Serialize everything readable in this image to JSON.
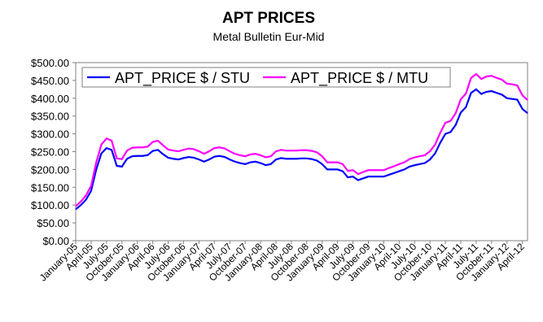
{
  "chart_data": {
    "type": "line",
    "title": "APT PRICES",
    "subtitle": "Metal Bulletin Eur-Mid",
    "categories": [
      "January-05",
      null,
      null,
      "April-05",
      null,
      null,
      "July-05",
      null,
      null,
      "October-05",
      null,
      null,
      "January-06",
      null,
      null,
      "April-06",
      null,
      null,
      "July-06",
      null,
      null,
      "October-06",
      null,
      null,
      "January-07",
      null,
      null,
      "April-07",
      null,
      null,
      "July-07",
      null,
      null,
      "October-07",
      null,
      null,
      "January-08",
      null,
      null,
      "April-08",
      null,
      null,
      "July-08",
      null,
      null,
      "October-08",
      null,
      null,
      "January-09",
      null,
      null,
      "April-09",
      null,
      null,
      "July-09",
      null,
      null,
      "October-09",
      null,
      null,
      "January-10",
      null,
      null,
      "April-10",
      null,
      null,
      "July-10",
      null,
      null,
      "October-10",
      null,
      null,
      "January-11",
      null,
      null,
      "April-11",
      null,
      null,
      "July-11",
      null,
      null,
      "October-11",
      null,
      null,
      "January-12",
      null,
      null,
      "April-12",
      null
    ],
    "series": [
      {
        "name": "APT_PRICE $ / STU",
        "color": "#0000ff",
        "values": [
          88,
          100,
          115,
          140,
          200,
          245,
          260,
          255,
          210,
          208,
          230,
          237,
          238,
          238,
          240,
          252,
          255,
          243,
          233,
          230,
          228,
          232,
          235,
          233,
          228,
          222,
          228,
          236,
          238,
          235,
          228,
          222,
          218,
          215,
          220,
          222,
          218,
          212,
          215,
          228,
          232,
          230,
          230,
          230,
          231,
          231,
          229,
          225,
          215,
          200,
          200,
          200,
          195,
          178,
          180,
          170,
          175,
          180,
          180,
          180,
          180,
          185,
          190,
          195,
          200,
          208,
          212,
          215,
          218,
          228,
          245,
          275,
          300,
          305,
          325,
          360,
          375,
          415,
          425,
          412,
          418,
          420,
          415,
          410,
          400,
          398,
          396,
          370,
          358
        ]
      },
      {
        "name": "APT_PRICE $ / MTU",
        "color": "#ff00ff",
        "values": [
          97,
          110,
          127,
          154,
          220,
          270,
          287,
          281,
          231,
          229,
          253,
          261,
          262,
          262,
          264,
          277,
          281,
          268,
          256,
          253,
          251,
          255,
          259,
          257,
          251,
          244,
          251,
          260,
          262,
          259,
          251,
          244,
          240,
          237,
          242,
          244,
          240,
          234,
          237,
          251,
          255,
          253,
          253,
          253,
          254,
          254,
          252,
          248,
          237,
          220,
          220,
          220,
          215,
          196,
          198,
          187,
          193,
          198,
          198,
          198,
          198,
          204,
          209,
          215,
          220,
          229,
          234,
          237,
          240,
          251,
          270,
          303,
          331,
          336,
          358,
          397,
          413,
          457,
          468,
          454,
          461,
          463,
          457,
          452,
          441,
          439,
          436,
          408,
          395
        ]
      }
    ],
    "ylim": [
      0,
      500
    ],
    "yticks": [
      {
        "value": 0,
        "label": "$0.00"
      },
      {
        "value": 50,
        "label": "$50.00"
      },
      {
        "value": 100,
        "label": "$100.00"
      },
      {
        "value": 150,
        "label": "$150.00"
      },
      {
        "value": 200,
        "label": "$200.00"
      },
      {
        "value": 250,
        "label": "$250.00"
      },
      {
        "value": 300,
        "label": "$300.00"
      },
      {
        "value": 350,
        "label": "$350.00"
      },
      {
        "value": 400,
        "label": "$400.00"
      },
      {
        "value": 450,
        "label": "$450.00"
      },
      {
        "value": 500,
        "label": "$500.00"
      }
    ],
    "grid": false,
    "legend": "top-left"
  }
}
